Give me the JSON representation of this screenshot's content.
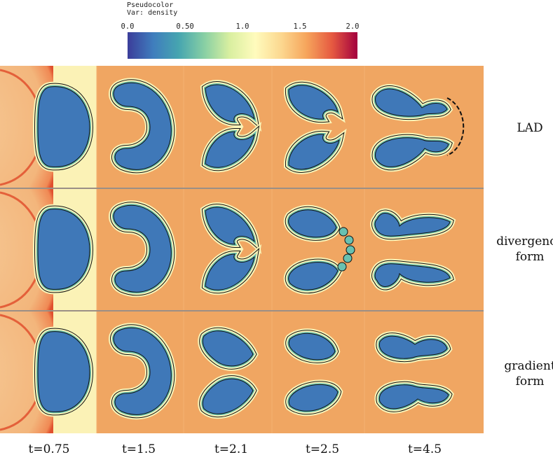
{
  "legend": {
    "title_line1": "Pseudocolor",
    "title_line2": "Var: density",
    "ticks": [
      "0.0",
      "0.50",
      "1.0",
      "1.5",
      "2.0"
    ],
    "colors": [
      "#3b3d9a",
      "#3f7dbd",
      "#46a5b0",
      "#87cfa4",
      "#d9efa0",
      "#fffbbd",
      "#fcd890",
      "#f6a55c",
      "#e65a41",
      "#a3003e"
    ]
  },
  "rows": [
    {
      "label_line1": "LAD",
      "label_line2": ""
    },
    {
      "label_line1": "divergence",
      "label_line2": "form"
    },
    {
      "label_line1": "gradient",
      "label_line2": "form"
    }
  ],
  "times": [
    "t=0.75",
    "t=1.5",
    "t=2.1",
    "t=2.5",
    "t=4.5"
  ],
  "colors": {
    "background": "#f0a662",
    "bubble": "#3f78b8",
    "halo": "#f9f4b8",
    "ring": "#68c1b1",
    "shock": "#e0502e",
    "shocked_band": "#fbf2b6"
  }
}
